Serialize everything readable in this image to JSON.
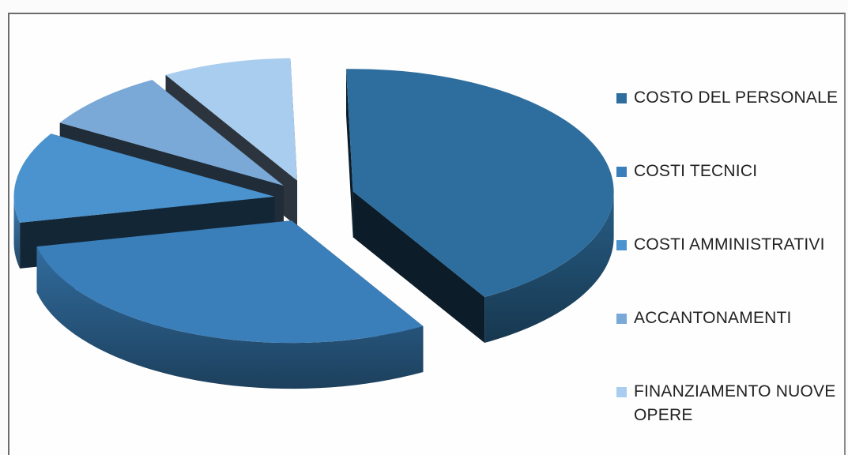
{
  "chart_data": {
    "type": "pie",
    "style": "3d-exploded",
    "categories": [
      "COSTO DEL PERSONALE",
      "COSTI TECNICI",
      "COSTI AMMINISTRATIVI",
      "ACCANTONAMENTI",
      "FINANZIAMENTO NUOVE OPERE"
    ],
    "values": [
      42,
      30,
      12,
      8,
      8
    ],
    "colors": [
      "#2e6e9e",
      "#3a7fba",
      "#4a93cf",
      "#7aa9d8",
      "#a9cdee"
    ],
    "legend_position": "right",
    "title": ""
  }
}
